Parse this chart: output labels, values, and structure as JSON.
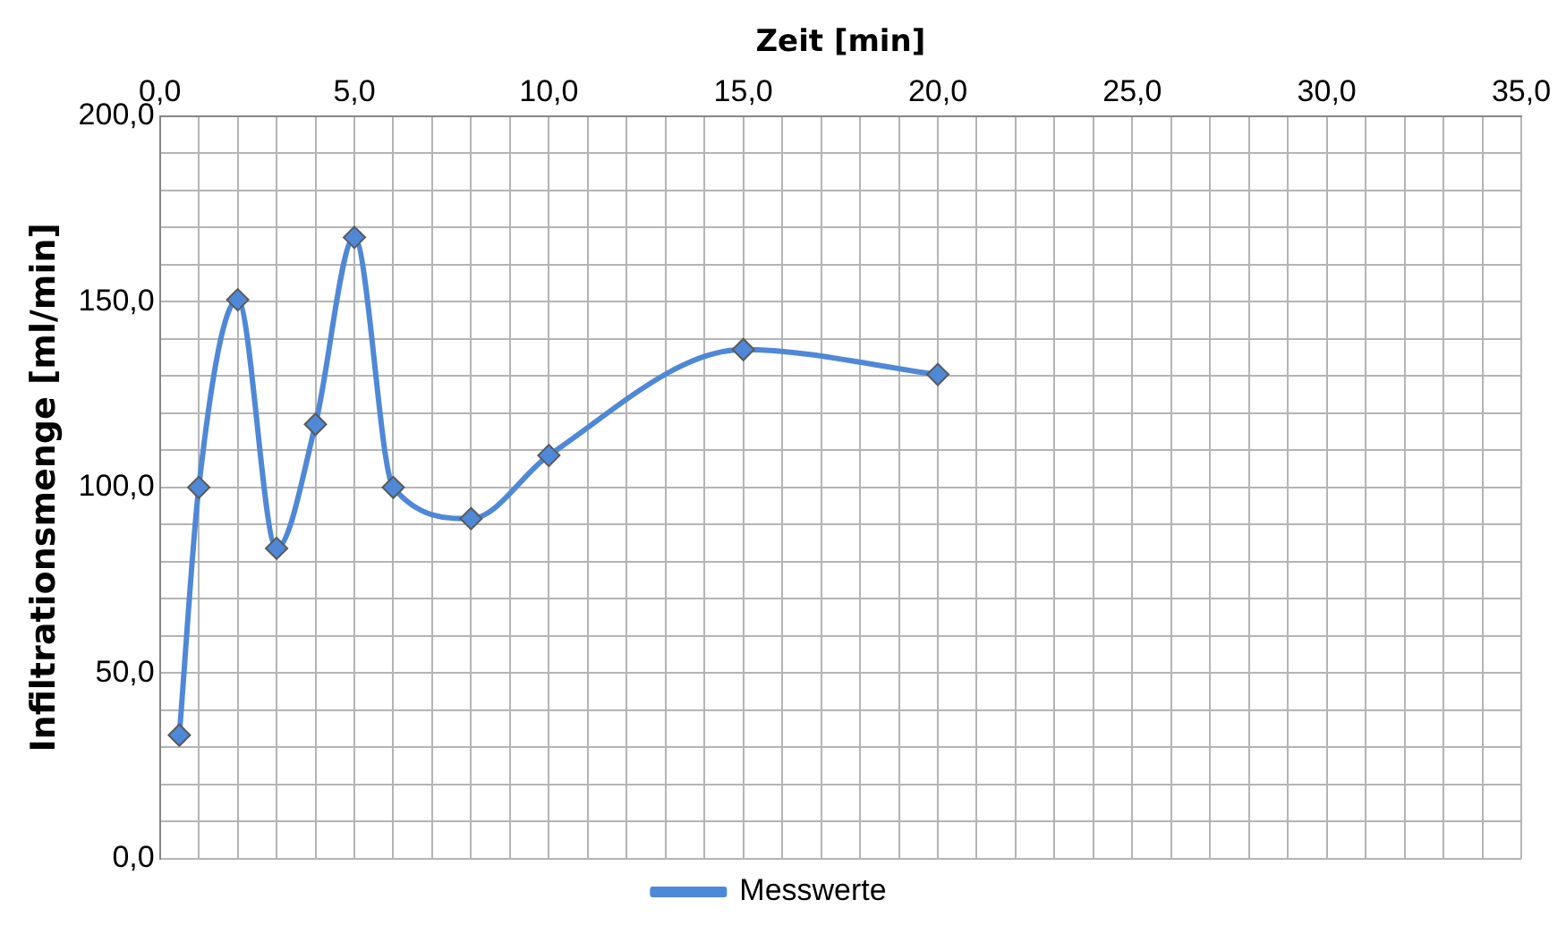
{
  "chart_data": {
    "type": "line",
    "xlabel": "Zeit [min]",
    "ylabel": "Infiltrationsmenge [ml/min]",
    "x": [
      0.5,
      1,
      2,
      3,
      4,
      5,
      6,
      8,
      10,
      15,
      20
    ],
    "series": [
      {
        "name": "Messwerte",
        "color": "#4f88d6",
        "values": [
          33.3,
          100,
          150.5,
          83.6,
          117,
          167.3,
          100,
          91.6,
          108.6,
          137.1,
          130.4
        ]
      }
    ],
    "xlim": [
      0,
      35
    ],
    "xticks": [
      {
        "value": 0,
        "label": "0,0"
      },
      {
        "value": 1,
        "label": null
      },
      {
        "value": 2,
        "label": null
      },
      {
        "value": 3,
        "label": null
      },
      {
        "value": 4,
        "label": null
      },
      {
        "value": 5,
        "label": "5,0"
      },
      {
        "value": 6,
        "label": null
      },
      {
        "value": 7,
        "label": null
      },
      {
        "value": 8,
        "label": null
      },
      {
        "value": 9,
        "label": null
      },
      {
        "value": 10,
        "label": "10,0"
      },
      {
        "value": 11,
        "label": null
      },
      {
        "value": 12,
        "label": null
      },
      {
        "value": 13,
        "label": null
      },
      {
        "value": 14,
        "label": null
      },
      {
        "value": 15,
        "label": "15,0"
      },
      {
        "value": 16,
        "label": null
      },
      {
        "value": 17,
        "label": null
      },
      {
        "value": 18,
        "label": null
      },
      {
        "value": 19,
        "label": null
      },
      {
        "value": 20,
        "label": "20,0"
      },
      {
        "value": 21,
        "label": null
      },
      {
        "value": 22,
        "label": null
      },
      {
        "value": 23,
        "label": null
      },
      {
        "value": 24,
        "label": null
      },
      {
        "value": 25,
        "label": "25,0"
      },
      {
        "value": 26,
        "label": null
      },
      {
        "value": 27,
        "label": null
      },
      {
        "value": 28,
        "label": null
      },
      {
        "value": 29,
        "label": null
      },
      {
        "value": 30,
        "label": "30,0"
      },
      {
        "value": 31,
        "label": null
      },
      {
        "value": 32,
        "label": null
      },
      {
        "value": 33,
        "label": null
      },
      {
        "value": 34,
        "label": null
      },
      {
        "value": 35,
        "label": "35,0"
      }
    ],
    "ylim": [
      0,
      200
    ],
    "yticks": [
      {
        "value": 0,
        "label": "0,0"
      },
      {
        "value": 10,
        "label": null
      },
      {
        "value": 20,
        "label": null
      },
      {
        "value": 30,
        "label": null
      },
      {
        "value": 40,
        "label": null
      },
      {
        "value": 50,
        "label": "50,0"
      },
      {
        "value": 60,
        "label": null
      },
      {
        "value": 70,
        "label": null
      },
      {
        "value": 80,
        "label": null
      },
      {
        "value": 90,
        "label": null
      },
      {
        "value": 100,
        "label": "100,0"
      },
      {
        "value": 110,
        "label": null
      },
      {
        "value": 120,
        "label": null
      },
      {
        "value": 130,
        "label": null
      },
      {
        "value": 140,
        "label": null
      },
      {
        "value": 150,
        "label": "150,0"
      },
      {
        "value": 160,
        "label": null
      },
      {
        "value": 170,
        "label": null
      },
      {
        "value": 180,
        "label": null
      },
      {
        "value": 190,
        "label": null
      },
      {
        "value": 200,
        "label": "200,0"
      }
    ],
    "grid": true,
    "legend": "bottom",
    "marker": "diamond",
    "line_style": "solid"
  }
}
